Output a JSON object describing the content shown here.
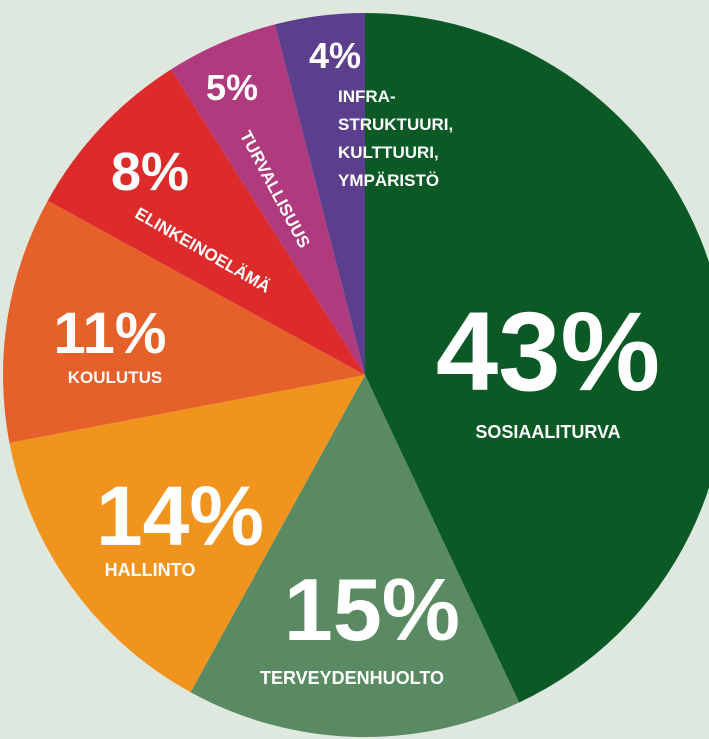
{
  "chart_data": {
    "type": "pie",
    "categories": [
      "SOSIAALITURVA",
      "TERVEYDENHUOLTO",
      "HALLINTO",
      "KOULUTUS",
      "ELINKEINOELÄMÄ",
      "TURVALLISUUS",
      "INFRA-\nSTRUKTUURI,\nKULTTUURI,\nYMPÄRISTÖ"
    ],
    "values": [
      43,
      15,
      14,
      11,
      8,
      5,
      4
    ],
    "value_labels": [
      "43%",
      "15%",
      "14%",
      "11%",
      "8%",
      "5%",
      "4%"
    ],
    "colors": [
      "#0b5a26",
      "#5a8a62",
      "#f0941e",
      "#e6602a",
      "#dd2b2b",
      "#b03a7e",
      "#5b3f8c"
    ]
  }
}
